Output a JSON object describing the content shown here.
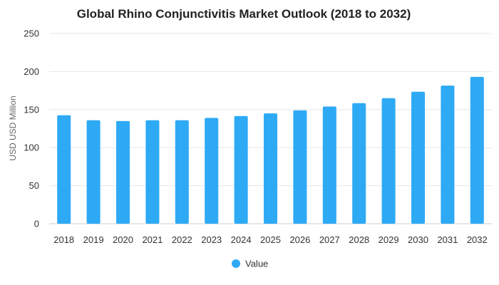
{
  "chart_data": {
    "type": "bar",
    "title": "Global Rhino Conjunctivitis Market Outlook (2018 to 2032)",
    "xlabel": "",
    "ylabel": "USD USD Million",
    "categories": [
      "2018",
      "2019",
      "2020",
      "2021",
      "2022",
      "2023",
      "2024",
      "2025",
      "2026",
      "2027",
      "2028",
      "2029",
      "2030",
      "2031",
      "2032"
    ],
    "series": [
      {
        "name": "Value",
        "values": [
          142.5,
          136,
          135,
          136,
          136,
          139,
          141.5,
          145,
          149,
          154,
          158.5,
          165,
          173.5,
          181.5,
          193
        ],
        "color": "#2eaaf5"
      }
    ],
    "ylim": [
      0,
      250
    ],
    "yticks": [
      "0",
      "50",
      "100",
      "150",
      "200",
      "250"
    ],
    "grid": true,
    "legend_position": "bottom-center"
  }
}
